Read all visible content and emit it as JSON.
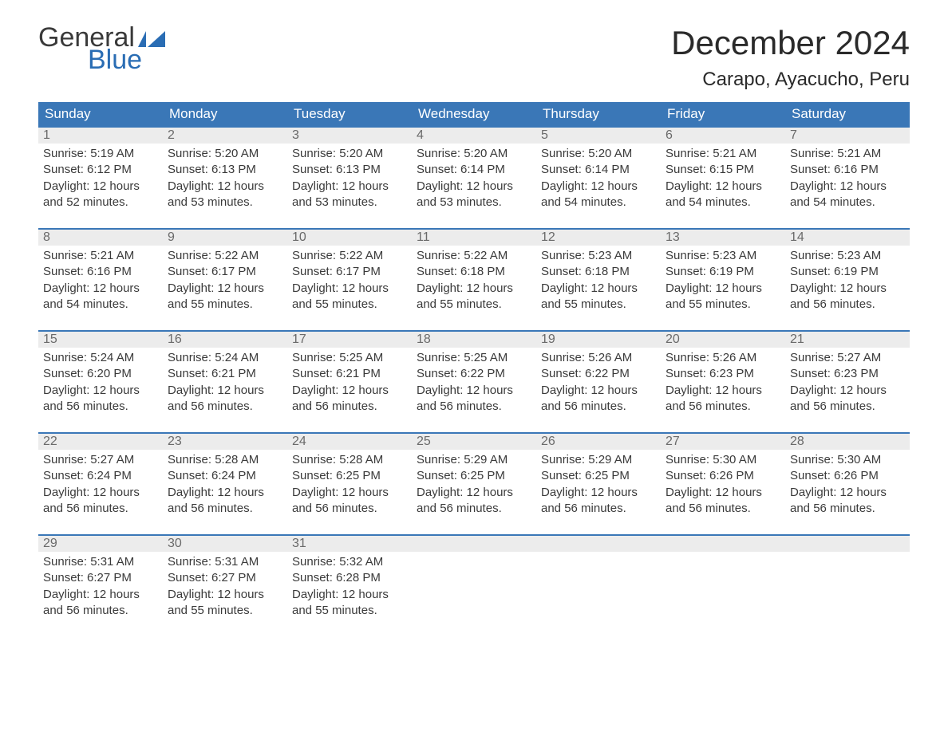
{
  "logo": {
    "general": "General",
    "blue": "Blue",
    "flag_color": "#2a6db4"
  },
  "title": "December 2024",
  "location": "Carapo, Ayacucho, Peru",
  "colors": {
    "header_bg": "#3a77b7",
    "header_text": "#ffffff",
    "week_border": "#3a77b7",
    "date_bar_bg": "#ececec",
    "date_bar_text": "#6a6a6a",
    "body_text": "#3a3a3a",
    "logo_blue": "#2a6db4"
  },
  "day_names": [
    "Sunday",
    "Monday",
    "Tuesday",
    "Wednesday",
    "Thursday",
    "Friday",
    "Saturday"
  ],
  "weeks": [
    [
      {
        "date": "1",
        "sunrise": "Sunrise: 5:19 AM",
        "sunset": "Sunset: 6:12 PM",
        "daylight1": "Daylight: 12 hours",
        "daylight2": "and 52 minutes."
      },
      {
        "date": "2",
        "sunrise": "Sunrise: 5:20 AM",
        "sunset": "Sunset: 6:13 PM",
        "daylight1": "Daylight: 12 hours",
        "daylight2": "and 53 minutes."
      },
      {
        "date": "3",
        "sunrise": "Sunrise: 5:20 AM",
        "sunset": "Sunset: 6:13 PM",
        "daylight1": "Daylight: 12 hours",
        "daylight2": "and 53 minutes."
      },
      {
        "date": "4",
        "sunrise": "Sunrise: 5:20 AM",
        "sunset": "Sunset: 6:14 PM",
        "daylight1": "Daylight: 12 hours",
        "daylight2": "and 53 minutes."
      },
      {
        "date": "5",
        "sunrise": "Sunrise: 5:20 AM",
        "sunset": "Sunset: 6:14 PM",
        "daylight1": "Daylight: 12 hours",
        "daylight2": "and 54 minutes."
      },
      {
        "date": "6",
        "sunrise": "Sunrise: 5:21 AM",
        "sunset": "Sunset: 6:15 PM",
        "daylight1": "Daylight: 12 hours",
        "daylight2": "and 54 minutes."
      },
      {
        "date": "7",
        "sunrise": "Sunrise: 5:21 AM",
        "sunset": "Sunset: 6:16 PM",
        "daylight1": "Daylight: 12 hours",
        "daylight2": "and 54 minutes."
      }
    ],
    [
      {
        "date": "8",
        "sunrise": "Sunrise: 5:21 AM",
        "sunset": "Sunset: 6:16 PM",
        "daylight1": "Daylight: 12 hours",
        "daylight2": "and 54 minutes."
      },
      {
        "date": "9",
        "sunrise": "Sunrise: 5:22 AM",
        "sunset": "Sunset: 6:17 PM",
        "daylight1": "Daylight: 12 hours",
        "daylight2": "and 55 minutes."
      },
      {
        "date": "10",
        "sunrise": "Sunrise: 5:22 AM",
        "sunset": "Sunset: 6:17 PM",
        "daylight1": "Daylight: 12 hours",
        "daylight2": "and 55 minutes."
      },
      {
        "date": "11",
        "sunrise": "Sunrise: 5:22 AM",
        "sunset": "Sunset: 6:18 PM",
        "daylight1": "Daylight: 12 hours",
        "daylight2": "and 55 minutes."
      },
      {
        "date": "12",
        "sunrise": "Sunrise: 5:23 AM",
        "sunset": "Sunset: 6:18 PM",
        "daylight1": "Daylight: 12 hours",
        "daylight2": "and 55 minutes."
      },
      {
        "date": "13",
        "sunrise": "Sunrise: 5:23 AM",
        "sunset": "Sunset: 6:19 PM",
        "daylight1": "Daylight: 12 hours",
        "daylight2": "and 55 minutes."
      },
      {
        "date": "14",
        "sunrise": "Sunrise: 5:23 AM",
        "sunset": "Sunset: 6:19 PM",
        "daylight1": "Daylight: 12 hours",
        "daylight2": "and 56 minutes."
      }
    ],
    [
      {
        "date": "15",
        "sunrise": "Sunrise: 5:24 AM",
        "sunset": "Sunset: 6:20 PM",
        "daylight1": "Daylight: 12 hours",
        "daylight2": "and 56 minutes."
      },
      {
        "date": "16",
        "sunrise": "Sunrise: 5:24 AM",
        "sunset": "Sunset: 6:21 PM",
        "daylight1": "Daylight: 12 hours",
        "daylight2": "and 56 minutes."
      },
      {
        "date": "17",
        "sunrise": "Sunrise: 5:25 AM",
        "sunset": "Sunset: 6:21 PM",
        "daylight1": "Daylight: 12 hours",
        "daylight2": "and 56 minutes."
      },
      {
        "date": "18",
        "sunrise": "Sunrise: 5:25 AM",
        "sunset": "Sunset: 6:22 PM",
        "daylight1": "Daylight: 12 hours",
        "daylight2": "and 56 minutes."
      },
      {
        "date": "19",
        "sunrise": "Sunrise: 5:26 AM",
        "sunset": "Sunset: 6:22 PM",
        "daylight1": "Daylight: 12 hours",
        "daylight2": "and 56 minutes."
      },
      {
        "date": "20",
        "sunrise": "Sunrise: 5:26 AM",
        "sunset": "Sunset: 6:23 PM",
        "daylight1": "Daylight: 12 hours",
        "daylight2": "and 56 minutes."
      },
      {
        "date": "21",
        "sunrise": "Sunrise: 5:27 AM",
        "sunset": "Sunset: 6:23 PM",
        "daylight1": "Daylight: 12 hours",
        "daylight2": "and 56 minutes."
      }
    ],
    [
      {
        "date": "22",
        "sunrise": "Sunrise: 5:27 AM",
        "sunset": "Sunset: 6:24 PM",
        "daylight1": "Daylight: 12 hours",
        "daylight2": "and 56 minutes."
      },
      {
        "date": "23",
        "sunrise": "Sunrise: 5:28 AM",
        "sunset": "Sunset: 6:24 PM",
        "daylight1": "Daylight: 12 hours",
        "daylight2": "and 56 minutes."
      },
      {
        "date": "24",
        "sunrise": "Sunrise: 5:28 AM",
        "sunset": "Sunset: 6:25 PM",
        "daylight1": "Daylight: 12 hours",
        "daylight2": "and 56 minutes."
      },
      {
        "date": "25",
        "sunrise": "Sunrise: 5:29 AM",
        "sunset": "Sunset: 6:25 PM",
        "daylight1": "Daylight: 12 hours",
        "daylight2": "and 56 minutes."
      },
      {
        "date": "26",
        "sunrise": "Sunrise: 5:29 AM",
        "sunset": "Sunset: 6:25 PM",
        "daylight1": "Daylight: 12 hours",
        "daylight2": "and 56 minutes."
      },
      {
        "date": "27",
        "sunrise": "Sunrise: 5:30 AM",
        "sunset": "Sunset: 6:26 PM",
        "daylight1": "Daylight: 12 hours",
        "daylight2": "and 56 minutes."
      },
      {
        "date": "28",
        "sunrise": "Sunrise: 5:30 AM",
        "sunset": "Sunset: 6:26 PM",
        "daylight1": "Daylight: 12 hours",
        "daylight2": "and 56 minutes."
      }
    ],
    [
      {
        "date": "29",
        "sunrise": "Sunrise: 5:31 AM",
        "sunset": "Sunset: 6:27 PM",
        "daylight1": "Daylight: 12 hours",
        "daylight2": "and 56 minutes."
      },
      {
        "date": "30",
        "sunrise": "Sunrise: 5:31 AM",
        "sunset": "Sunset: 6:27 PM",
        "daylight1": "Daylight: 12 hours",
        "daylight2": "and 55 minutes."
      },
      {
        "date": "31",
        "sunrise": "Sunrise: 5:32 AM",
        "sunset": "Sunset: 6:28 PM",
        "daylight1": "Daylight: 12 hours",
        "daylight2": "and 55 minutes."
      },
      null,
      null,
      null,
      null
    ]
  ]
}
